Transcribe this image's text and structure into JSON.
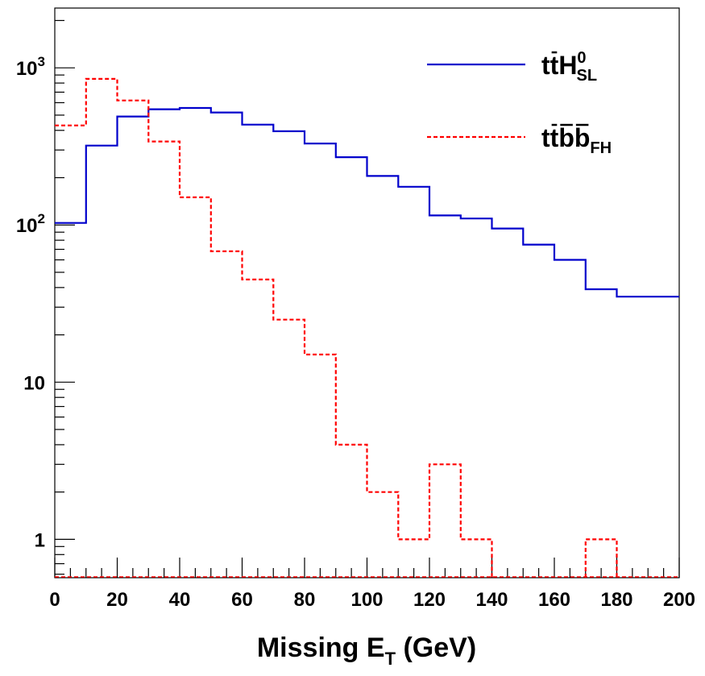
{
  "chart_data": {
    "type": "line",
    "title": "",
    "xlabel": {
      "main": "Missing E",
      "sub": "T",
      "unit": " (GeV)"
    },
    "ylabel": "",
    "yscale": "log",
    "xlim": [
      0,
      200
    ],
    "ylim": [
      0.57,
      2400
    ],
    "grid": false,
    "legend_placement": "top-right",
    "x_ticks": [
      {
        "value": 0,
        "label": "0"
      },
      {
        "value": 20,
        "label": "20"
      },
      {
        "value": 40,
        "label": "40"
      },
      {
        "value": 60,
        "label": "60"
      },
      {
        "value": 80,
        "label": "80"
      },
      {
        "value": 100,
        "label": "100"
      },
      {
        "value": 120,
        "label": "120"
      },
      {
        "value": 140,
        "label": "140"
      },
      {
        "value": 160,
        "label": "160"
      },
      {
        "value": 180,
        "label": "180"
      },
      {
        "value": 200,
        "label": "200"
      }
    ],
    "y_ticks": [
      {
        "value": 1,
        "base": "1",
        "exp": ""
      },
      {
        "value": 10,
        "base": "10",
        "exp": ""
      },
      {
        "value": 100,
        "base": "10",
        "exp": "2"
      },
      {
        "value": 1000,
        "base": "10",
        "exp": "3"
      }
    ],
    "bin_edges": [
      0,
      10,
      20,
      30,
      40,
      50,
      60,
      70,
      80,
      90,
      100,
      110,
      120,
      130,
      140,
      150,
      160,
      170,
      180,
      190,
      200
    ],
    "series": [
      {
        "legend": {
          "main": "tt",
          "accent": "H",
          "sup": "0",
          "sub": "SL"
        },
        "color": "#0000cc",
        "style": "solid",
        "values": [
          103,
          320,
          490,
          545,
          555,
          520,
          435,
          395,
          330,
          270,
          205,
          175,
          115,
          110,
          95,
          75,
          60,
          39,
          35,
          35
        ]
      },
      {
        "legend": {
          "main": "tt",
          "accent": "bb",
          "sub": "FH"
        },
        "color": "#ff0000",
        "style": "dashed",
        "values": [
          430,
          850,
          620,
          340,
          150,
          68,
          45,
          25,
          15,
          4,
          2,
          1,
          3,
          1,
          0,
          0,
          0,
          1,
          0,
          0
        ]
      }
    ]
  }
}
